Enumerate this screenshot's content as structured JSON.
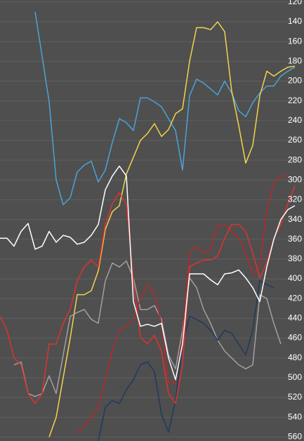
{
  "chart_data": {
    "type": "line",
    "categories": [
      null,
      null,
      null,
      null,
      null,
      null,
      null,
      null,
      null,
      null,
      null,
      null,
      null,
      null,
      null,
      null,
      null,
      null,
      null,
      null,
      null,
      null,
      null,
      null,
      null,
      null,
      null,
      null,
      null,
      null,
      null,
      null,
      null,
      null,
      null,
      null,
      null,
      null,
      null,
      null,
      null,
      null,
      null
    ],
    "ylim": [
      564,
      118
    ],
    "yticks": [
      120,
      140,
      160,
      180,
      200,
      220,
      240,
      260,
      280,
      300,
      320,
      340,
      360,
      380,
      400,
      420,
      440,
      460,
      480,
      500,
      520,
      540,
      560
    ],
    "grid": true,
    "series": [
      {
        "color": "#4aa3d8",
        "values": [
          null,
          null,
          null,
          null,
          null,
          130,
          175,
          221,
          300,
          325,
          318,
          292,
          285,
          281,
          302,
          290,
          262,
          238,
          242,
          250,
          217,
          217,
          221,
          226,
          238,
          250,
          290,
          215,
          198,
          202,
          208,
          214,
          200,
          212,
          230,
          236,
          222,
          212,
          205,
          205,
          195,
          190,
          186
        ]
      },
      {
        "color": "#f2d34a",
        "values": [
          null,
          null,
          null,
          null,
          null,
          null,
          null,
          560,
          540,
          500,
          460,
          416,
          416,
          412,
          392,
          350,
          332,
          326,
          294,
          277,
          260,
          253,
          243,
          256,
          249,
          233,
          228,
          180,
          146,
          146,
          148,
          140,
          150,
          210,
          245,
          283,
          265,
          215,
          190,
          195,
          190,
          186,
          185
        ]
      },
      {
        "color": "#a0a0a0",
        "values": [
          null,
          null,
          487,
          484,
          516,
          519,
          516,
          498,
          516,
          477,
          438,
          434,
          431,
          441,
          445,
          402,
          384,
          388,
          382,
          399,
          431,
          431,
          427,
          441,
          477,
          491,
          452,
          399,
          409,
          431,
          445,
          462,
          473,
          480,
          487,
          491,
          487,
          416,
          420,
          445,
          466,
          null,
          null
        ]
      },
      {
        "color": "#1f3a5f",
        "values": [
          null,
          null,
          null,
          null,
          null,
          null,
          null,
          null,
          null,
          null,
          null,
          null,
          null,
          null,
          564,
          530,
          523,
          526,
          512,
          502,
          487,
          484,
          494,
          537,
          555,
          523,
          466,
          438,
          441,
          445,
          452,
          462,
          452,
          455,
          466,
          477,
          452,
          402,
          406,
          409,
          null,
          null,
          null
        ]
      },
      {
        "color": "#b8282a",
        "values": [
          null,
          null,
          null,
          null,
          null,
          null,
          null,
          null,
          null,
          null,
          null,
          556,
          548,
          541,
          530,
          502,
          473,
          452,
          448,
          441,
          420,
          406,
          416,
          445,
          505,
          505,
          459,
          374,
          367,
          374,
          370,
          345,
          345,
          352,
          359,
          374,
          395,
          388,
          331,
          303,
          296,
          296,
          null
        ]
      },
      {
        "color": "#e0322f",
        "values": [
          438,
          452,
          480,
          487,
          516,
          526,
          516,
          466,
          466,
          445,
          431,
          402,
          388,
          381,
          388,
          345,
          324,
          313,
          324,
          402,
          459,
          466,
          457,
          473,
          516,
          526,
          487,
          388,
          384,
          381,
          381,
          377,
          359,
          345,
          345,
          352,
          374,
          399,
          384,
          359,
          345,
          324,
          306
        ]
      },
      {
        "color": "#ffffff",
        "values": [
          359,
          359,
          367,
          352,
          344,
          370,
          367,
          352,
          363,
          356,
          358,
          365,
          363,
          356,
          345,
          310,
          296,
          286,
          296,
          423,
          448,
          446,
          448,
          445,
          480,
          502,
          466,
          395,
          395,
          395,
          401,
          406,
          395,
          394,
          391,
          399,
          409,
          423,
          388,
          360,
          340,
          330,
          326
        ]
      }
    ]
  }
}
